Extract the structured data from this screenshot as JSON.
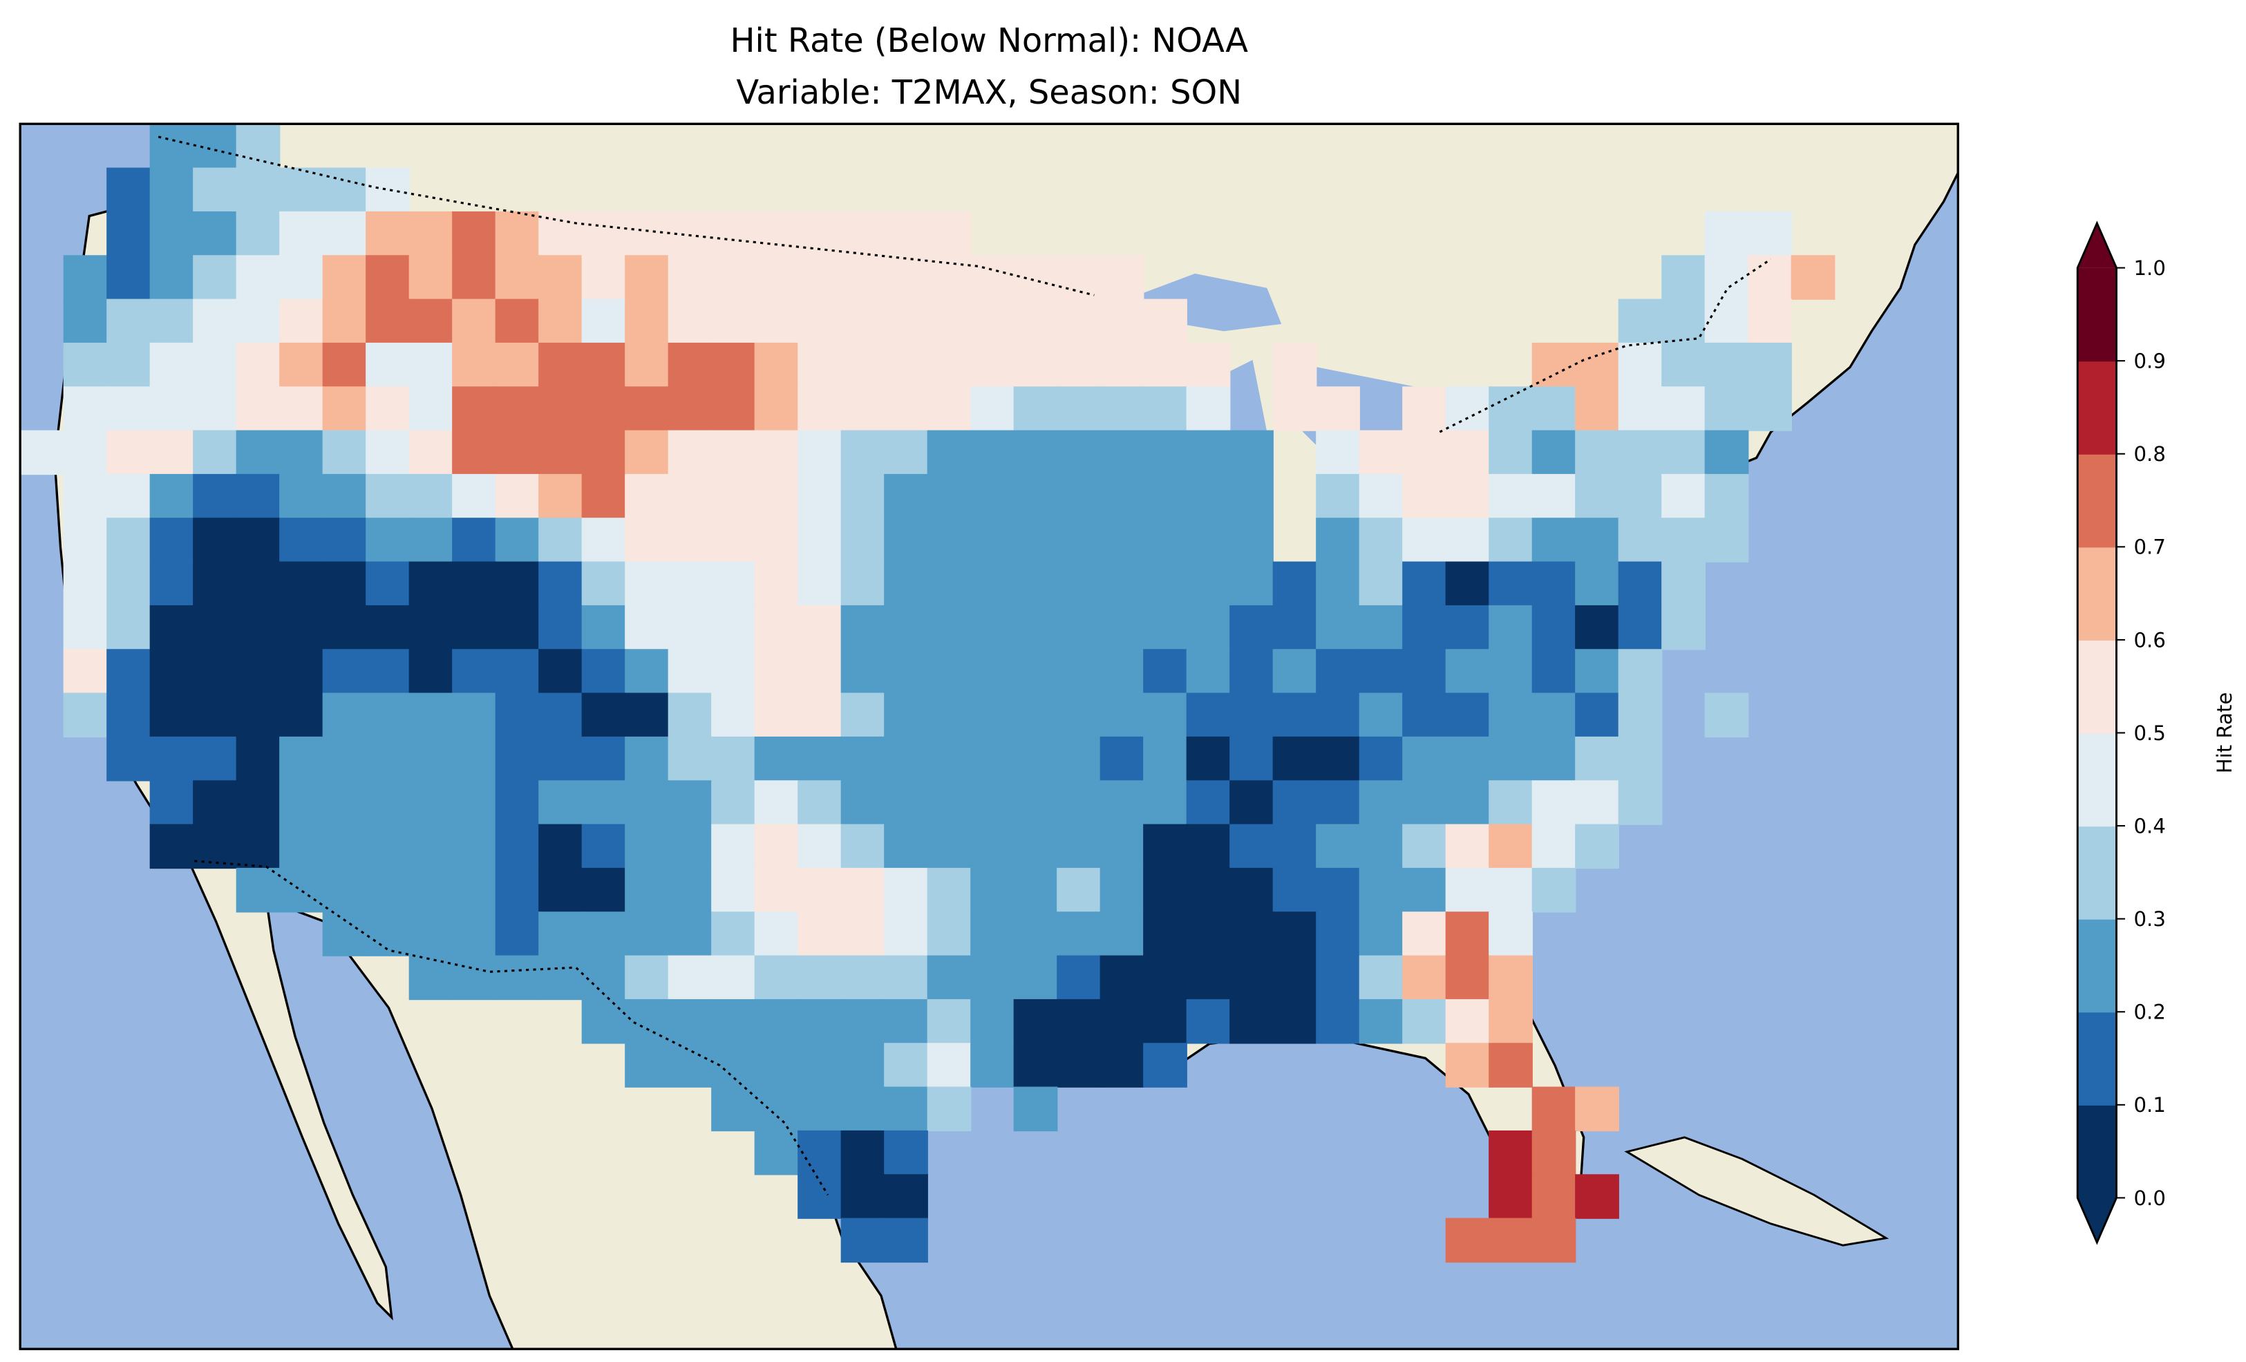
{
  "chart_data": {
    "type": "heatmap",
    "title_line1": "Hit Rate (Below Normal): NOAA",
    "title_line2": "Variable: T2MAX, Season: SON",
    "colorbar": {
      "label": "Hit Rate",
      "ticks": [
        "0.0",
        "0.1",
        "0.2",
        "0.3",
        "0.4",
        "0.5",
        "0.6",
        "0.7",
        "0.8",
        "0.9",
        "1.0"
      ],
      "range": [
        0,
        1
      ],
      "extend": "both",
      "bin_colors": [
        "#072f5f",
        "#2468ad",
        "#529dc8",
        "#a7cfe4",
        "#e1edf3",
        "#f9e6de",
        "#f6b899",
        "#dc6f58",
        "#b2202e",
        "#67001f"
      ]
    },
    "colors": {
      "ocean": "#97b6e1",
      "land": "#efedd9"
    },
    "grid_note_bins": "each digit = hit-rate bin index (0 = 0.0-0.1 ... 9 = 0.9-1.0), '.' = no data",
    "grid": [
      "...223",
      "..1233334",
      "..12234466765555555555.................44",
      ".2123446767665655555555555............3456",
      ".23344567767646555555555555..........3345",
      ".334456744667767765555555555.5.....664333",
      ".444455654777777765555433334.55.543364433",
      "44553223457777655543322222222.4555323332",
      ".4421122334567555543222222222 3455443343",
      ".4310011221234555543222222222 2344322333",
      ".43100001000134445432222222221231011213",
      ".43000000000124445522222222211221121013",
      ".5100001101101244552222222121211122123",
      ".3100002222110034553222222211112112213 3",
      "..111022222111233222222221201001222233",
      "...10022222122223432222222210112223443",
      "...0002222210122454322222200112235643",
      ".....2222221002245554322320001122443",
      ".......2222122223455432222000012574",
      ".........22222344333322210000013676",
      ".............2222222232000010012356",
      "..............2222223420001......67",
      "................222223 2...........76",
      ".................2101.............87",
      "..................100.............878",
      "...................11............777"
    ]
  }
}
